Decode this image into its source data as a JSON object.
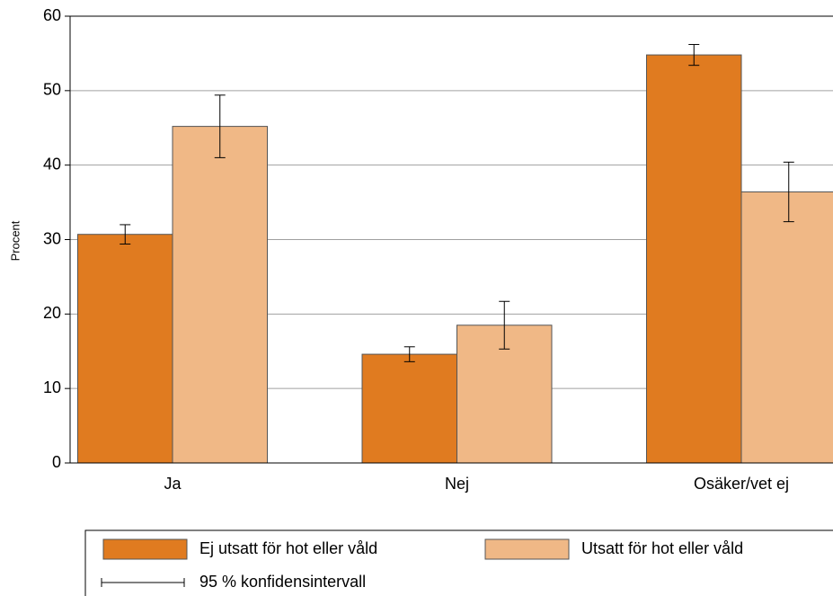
{
  "chart_data": {
    "type": "bar",
    "y_label": "Procent",
    "categories": [
      "Ja",
      "Nej",
      "Osäker/vet ej"
    ],
    "series": [
      {
        "name": "Ej utsatt för hot eller våld",
        "color": "#e07b20",
        "values": [
          30.7,
          14.6,
          54.8
        ],
        "errors": [
          1.3,
          1.0,
          1.4
        ]
      },
      {
        "name": "Utsatt för hot eller våld",
        "color": "#f0b886",
        "values": [
          45.2,
          18.5,
          36.4
        ],
        "errors": [
          4.2,
          3.2,
          4.0
        ]
      }
    ],
    "error_legend": "95 % konfidensintervall",
    "ylim": [
      0,
      60
    ],
    "yticks": [
      0,
      10,
      20,
      30,
      40,
      50,
      60
    ],
    "grid": true
  }
}
